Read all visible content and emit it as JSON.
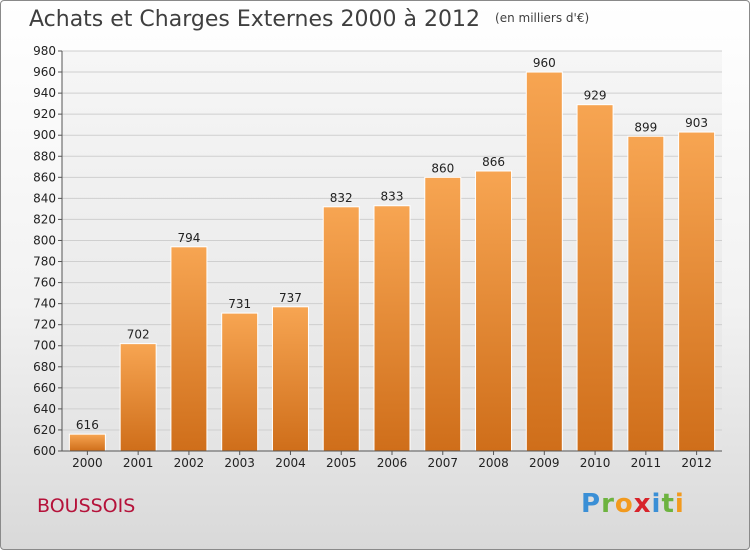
{
  "chart_data": {
    "type": "bar",
    "title": "Achats et Charges Externes 2000 à 2012",
    "subtitle": "(en milliers d'€)",
    "categories": [
      "2000",
      "2001",
      "2002",
      "2003",
      "2004",
      "2005",
      "2006",
      "2007",
      "2008",
      "2009",
      "2010",
      "2011",
      "2012"
    ],
    "values": [
      616,
      702,
      794,
      731,
      737,
      832,
      833,
      860,
      866,
      960,
      929,
      899,
      903
    ],
    "ylim": [
      600,
      980
    ],
    "yticks": [
      600,
      620,
      640,
      660,
      680,
      700,
      720,
      740,
      760,
      780,
      800,
      820,
      840,
      860,
      880,
      900,
      920,
      940,
      960,
      980
    ],
    "grid": true,
    "bar_color": "#f0943a",
    "bar_color_dark": "#cf6e1a"
  },
  "commune": "BOUSSOIS",
  "logo": {
    "letters": [
      "P",
      "r",
      "o",
      "x",
      "i",
      "t",
      "i"
    ],
    "colors": [
      "#3a8fd6",
      "#6db33f",
      "#f29a1e",
      "#d8232a",
      "#3a8fd6",
      "#6db33f",
      "#f29a1e"
    ]
  }
}
